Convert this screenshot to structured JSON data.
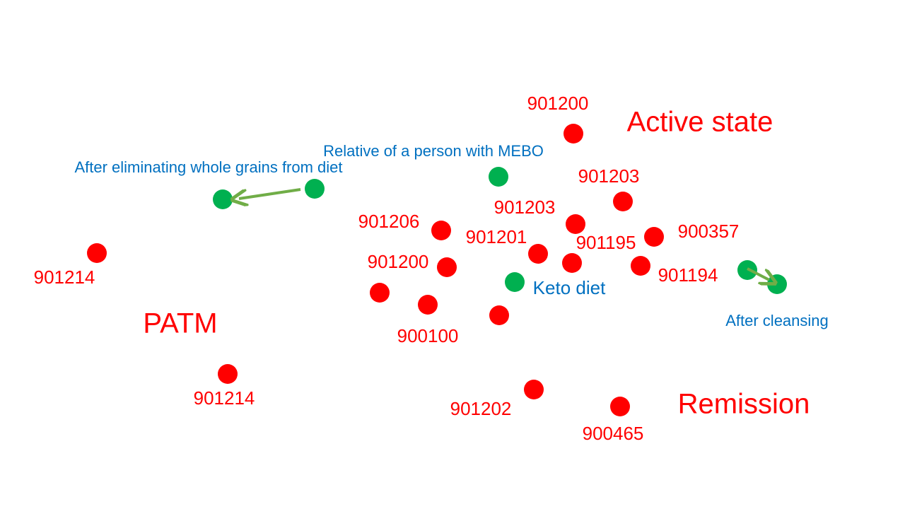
{
  "regions": [
    "Active state",
    "PATM",
    "Remission"
  ],
  "samples": [
    "901200",
    "901203",
    "901203",
    "901206",
    "900357",
    "901201",
    "901195",
    "901200",
    "901194",
    "900100",
    "901214",
    "901214",
    "901202",
    "900465"
  ],
  "annotations": [
    "Relative of a person with MEBO",
    "After eliminating whole grains from diet",
    "Keto diet",
    "After cleansing"
  ]
}
